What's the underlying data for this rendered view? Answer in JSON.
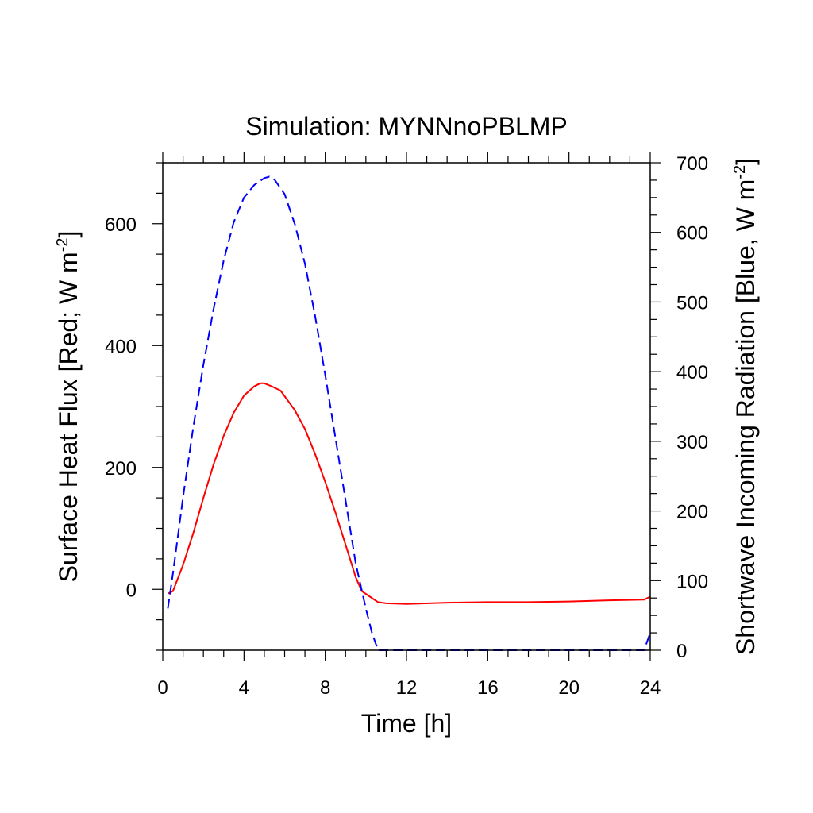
{
  "chart_data": {
    "type": "line",
    "title": "Simulation: MYNNnoPBLMP",
    "xlabel": "Time [h]",
    "ylabel_left": {
      "text": "Surface Heat Flux [Red; W m",
      "sup": "-2",
      "close": "]"
    },
    "ylabel_right": {
      "text": "Shortwave Incoming Radiation [Blue, W m",
      "sup": "-2",
      "close": "]"
    },
    "xlim": [
      0,
      24
    ],
    "ylim_left": [
      -100,
      700
    ],
    "ylim_right": [
      0,
      700
    ],
    "x_ticks": [
      0,
      4,
      8,
      12,
      16,
      20,
      24
    ],
    "y_ticks_left": [
      0,
      200,
      400,
      600
    ],
    "y_ticks_right": [
      0,
      100,
      200,
      300,
      400,
      500,
      600,
      700
    ],
    "grid": false,
    "legend": "none",
    "series": [
      {
        "axis": "left",
        "color": "#ff0000",
        "dash": "solid",
        "x": [
          0.25,
          0.5,
          1.0,
          1.5,
          2.0,
          2.5,
          3.0,
          3.5,
          4.0,
          4.5,
          4.8,
          5.0,
          5.3,
          5.8,
          6.5,
          7.0,
          7.5,
          8.0,
          8.5,
          9.0,
          9.5,
          9.8,
          10.2,
          10.6,
          11.0,
          12.0,
          14.0,
          16.0,
          18.0,
          20.0,
          22.0,
          23.7,
          24.0
        ],
        "values": [
          -7,
          -3,
          40,
          92,
          150,
          205,
          252,
          290,
          318,
          333,
          338,
          338,
          334,
          326,
          294,
          263,
          222,
          176,
          126,
          73,
          20,
          -3,
          -12,
          -21,
          -23,
          -24,
          -22,
          -21,
          -21,
          -20,
          -18,
          -17,
          -12
        ]
      },
      {
        "axis": "right",
        "color": "#0000ff",
        "dash": "dashed",
        "x": [
          0.25,
          0.5,
          1.0,
          1.5,
          2.0,
          2.5,
          3.0,
          3.5,
          4.0,
          4.5,
          5.0,
          5.25,
          5.5,
          6.0,
          6.5,
          7.0,
          7.5,
          8.0,
          8.5,
          9.0,
          9.5,
          10.0,
          10.3,
          10.6,
          11.0,
          14.0,
          18.0,
          22.0,
          23.7,
          24.0
        ],
        "values": [
          60,
          110,
          220,
          320,
          410,
          490,
          560,
          615,
          650,
          668,
          678,
          680,
          676,
          655,
          612,
          555,
          480,
          395,
          305,
          215,
          125,
          60,
          25,
          0,
          0,
          0,
          0,
          0,
          0,
          25
        ]
      }
    ]
  }
}
